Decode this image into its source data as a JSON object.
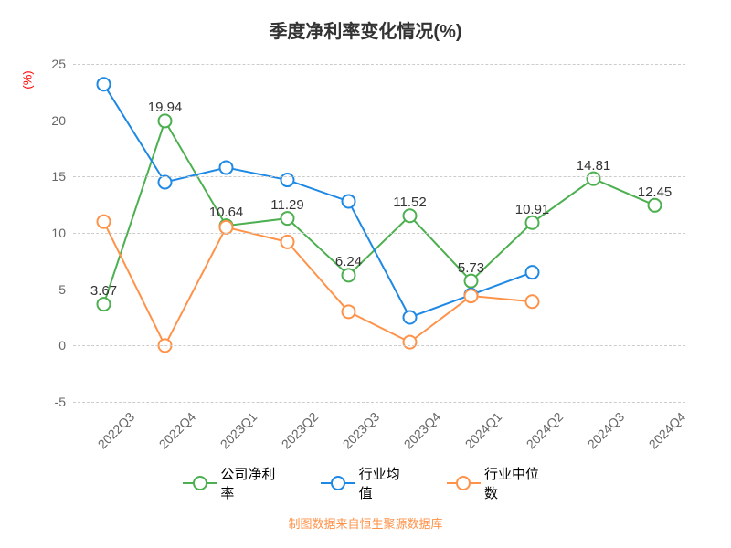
{
  "chart": {
    "type": "line",
    "title": "季度净利率变化情况(%)",
    "title_fontsize": 20,
    "y_axis_label": "(%)",
    "background_color": "#ffffff",
    "grid_color": "#cccccc",
    "axis_color": "#888888",
    "title_color": "#333333",
    "tick_color": "#666666",
    "ylim": [
      -5,
      25
    ],
    "ytick_step": 5,
    "yticks": [
      -5,
      0,
      5,
      10,
      15,
      20,
      25
    ],
    "categories": [
      "2022Q3",
      "2022Q4",
      "2023Q1",
      "2023Q2",
      "2023Q3",
      "2023Q4",
      "2024Q1",
      "2024Q2",
      "2024Q3",
      "2024Q4"
    ],
    "series": [
      {
        "name": "公司净利率",
        "color": "#4caf50",
        "line_width": 2,
        "marker": "circle",
        "marker_size": 7,
        "marker_fill": "#ffffff",
        "values": [
          3.67,
          19.94,
          10.64,
          11.29,
          6.24,
          11.52,
          5.73,
          10.91,
          14.81,
          12.45
        ],
        "show_labels": true
      },
      {
        "name": "行业均值",
        "color": "#1e88e5",
        "line_width": 2,
        "marker": "circle",
        "marker_size": 7,
        "marker_fill": "#ffffff",
        "values": [
          23.2,
          14.5,
          15.8,
          14.7,
          12.8,
          2.5,
          4.5,
          6.5,
          null,
          null
        ],
        "show_labels": false
      },
      {
        "name": "行业中位数",
        "color": "#ff9249",
        "line_width": 2,
        "marker": "circle",
        "marker_size": 7,
        "marker_fill": "#ffffff",
        "values": [
          11.0,
          0.0,
          10.5,
          9.2,
          3.0,
          0.3,
          4.4,
          3.9,
          null,
          null
        ],
        "show_labels": false
      }
    ],
    "legend_position": "bottom",
    "source_text": "制图数据来自恒生聚源数据库",
    "source_color": "#ff9249"
  }
}
